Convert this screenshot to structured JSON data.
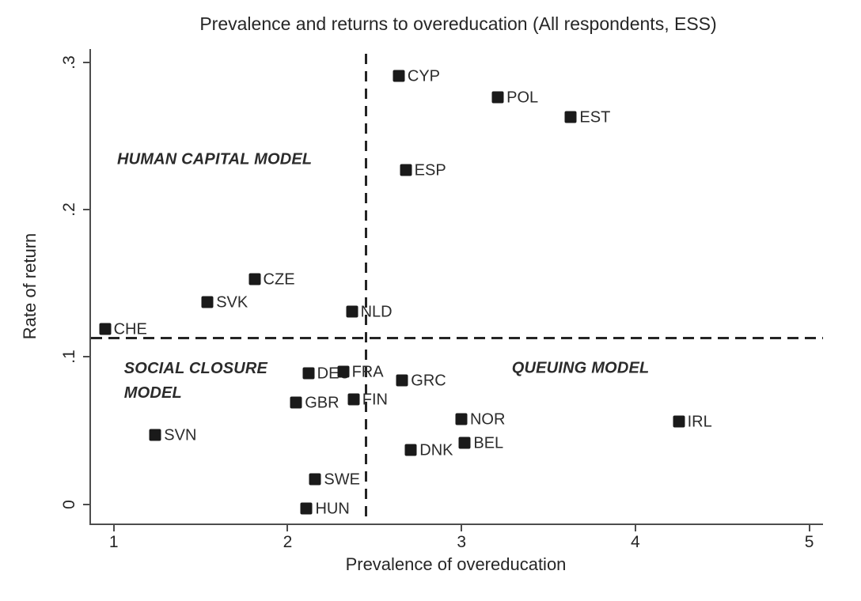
{
  "chart_data": {
    "type": "scatter",
    "title": "Prevalence and returns to overeducation (All respondents, ESS)",
    "xlabel": "Prevalence of overeducation",
    "ylabel": "Rate of return",
    "xlim": [
      0.86,
      5.07
    ],
    "ylim": [
      -0.013,
      0.309
    ],
    "x_ticks": [
      1,
      2,
      3,
      4,
      5
    ],
    "x_tick_labels": [
      "1",
      "2",
      "3",
      "4",
      "5"
    ],
    "y_ticks": [
      0,
      0.1,
      0.2,
      0.3
    ],
    "y_tick_labels": [
      "0",
      ".1",
      ".2",
      ".3"
    ],
    "grid": false,
    "legend": "none",
    "marker": "filled-square",
    "reference_lines": [
      {
        "orientation": "vertical",
        "x": 2.44,
        "style": "dashed"
      },
      {
        "orientation": "horizontal",
        "y": 0.113,
        "style": "dashed"
      }
    ],
    "quadrant_labels": [
      {
        "lines": [
          "HUMAN CAPITAL MODEL"
        ],
        "x": 1.01,
        "y": 0.234
      },
      {
        "lines": [
          "SOCIAL CLOSURE",
          "MODEL"
        ],
        "x": 1.05,
        "y": 0.0835
      },
      {
        "lines": [
          "QUEUING MODEL"
        ],
        "x": 3.28,
        "y": 0.092
      }
    ],
    "points": [
      {
        "label": "CYP",
        "x": 2.63,
        "y": 0.291
      },
      {
        "label": "POL",
        "x": 3.2,
        "y": 0.276
      },
      {
        "label": "EST",
        "x": 3.62,
        "y": 0.263
      },
      {
        "label": "ESP",
        "x": 2.67,
        "y": 0.227
      },
      {
        "label": "CZE",
        "x": 1.8,
        "y": 0.153
      },
      {
        "label": "SVK",
        "x": 1.53,
        "y": 0.137
      },
      {
        "label": "NLD",
        "x": 2.36,
        "y": 0.131
      },
      {
        "label": "CHE",
        "x": 0.94,
        "y": 0.119
      },
      {
        "label": "DEU",
        "x": 2.11,
        "y": 0.089
      },
      {
        "label": "FRA",
        "x": 2.31,
        "y": 0.09
      },
      {
        "label": "GRC",
        "x": 2.65,
        "y": 0.084
      },
      {
        "label": "FIN",
        "x": 2.37,
        "y": 0.071
      },
      {
        "label": "GBR",
        "x": 2.04,
        "y": 0.069
      },
      {
        "label": "NOR",
        "x": 2.99,
        "y": 0.058
      },
      {
        "label": "IRL",
        "x": 4.24,
        "y": 0.056
      },
      {
        "label": "SVN",
        "x": 1.23,
        "y": 0.047
      },
      {
        "label": "BEL",
        "x": 3.01,
        "y": 0.042
      },
      {
        "label": "DNK",
        "x": 2.7,
        "y": 0.037
      },
      {
        "label": "SWE",
        "x": 2.15,
        "y": 0.017
      },
      {
        "label": "HUN",
        "x": 2.1,
        "y": -0.003
      }
    ],
    "colors": {
      "marker": "#1a1a1a",
      "axis": "#4d4d4d",
      "text": "#262626",
      "reference_line": "#242424",
      "background": "#ffffff"
    }
  }
}
